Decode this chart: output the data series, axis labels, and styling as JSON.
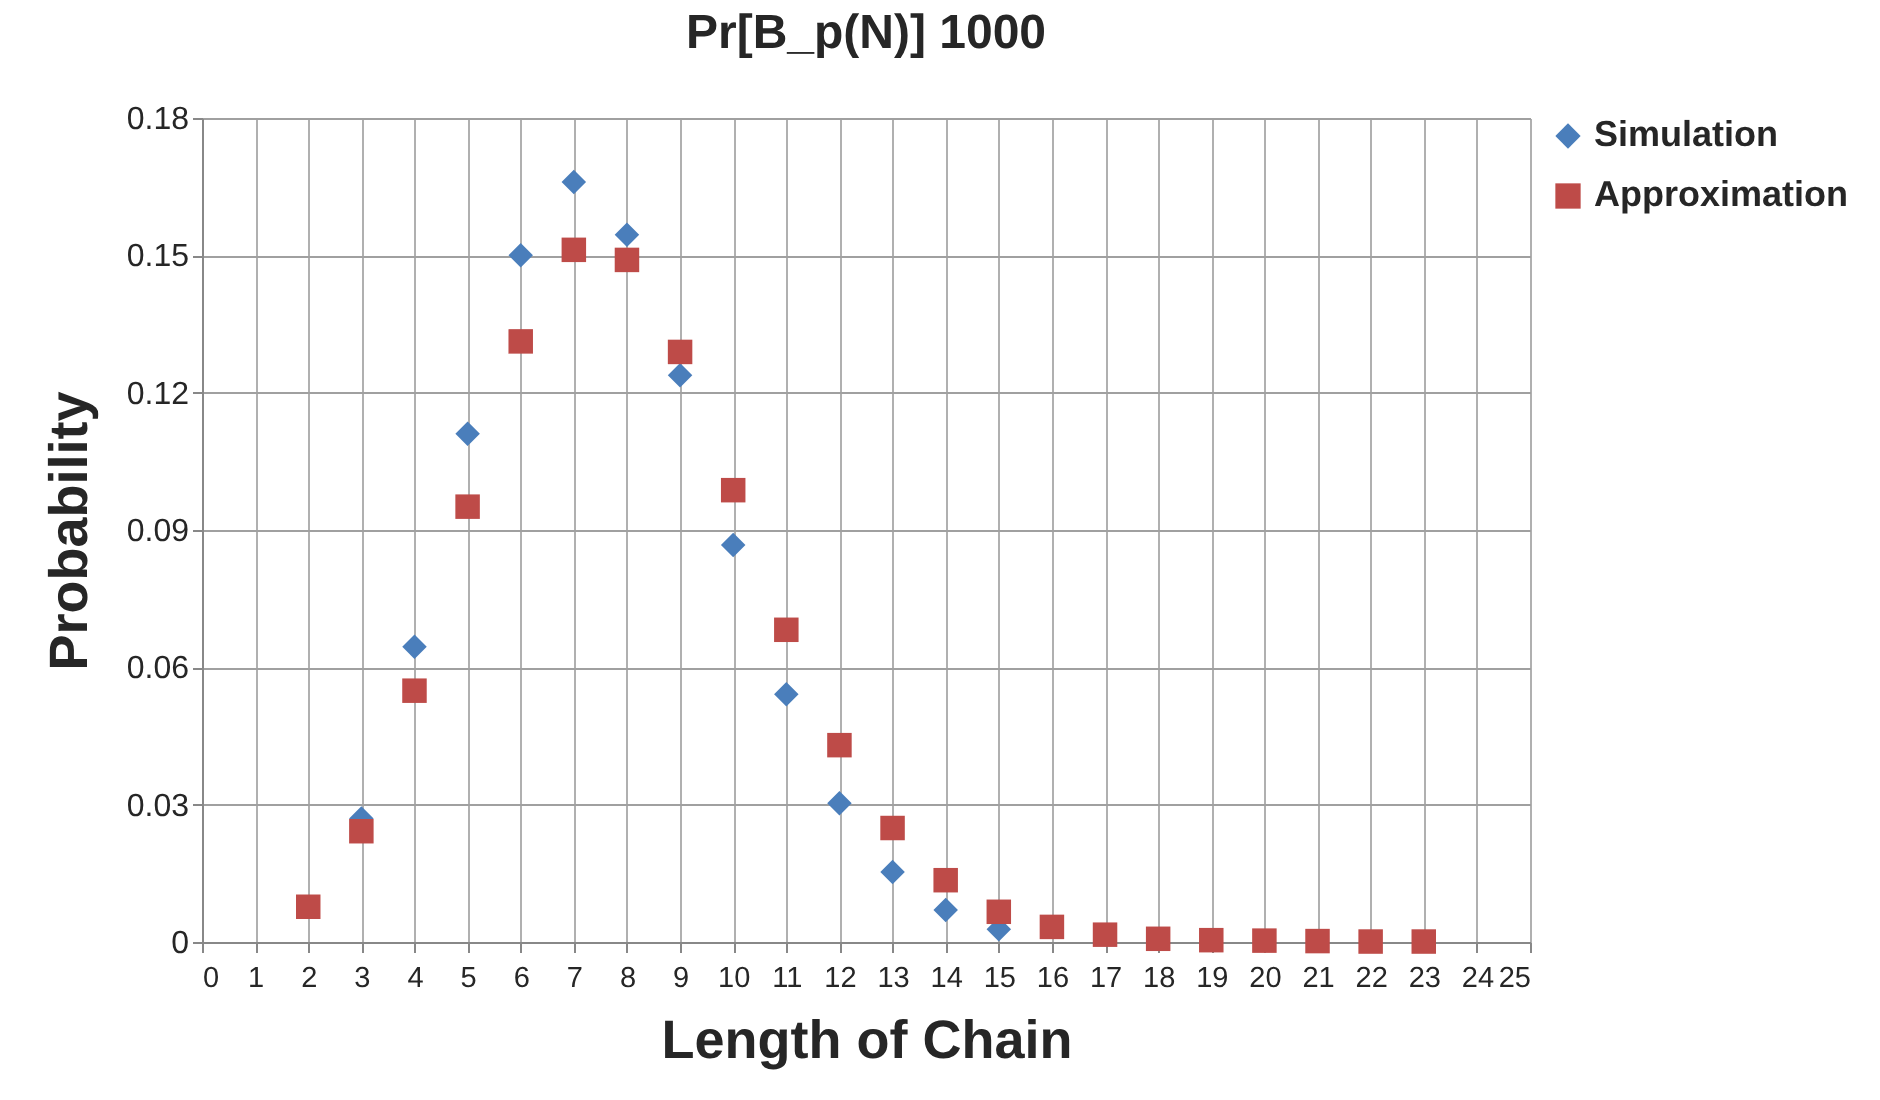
{
  "chart_data": {
    "type": "scatter",
    "title": "Pr[B_p(N)] 1000",
    "xlabel": "Length of Chain",
    "ylabel": "Probability",
    "x": [
      2,
      3,
      4,
      5,
      6,
      7,
      8,
      9,
      10,
      11,
      12,
      13,
      14,
      15,
      16,
      17,
      18,
      19,
      20,
      21,
      22,
      23
    ],
    "series": [
      {
        "name": "Simulation",
        "color": "#4a7ebb",
        "marker": "diamond",
        "values": [
          null,
          0.027,
          0.0645,
          0.111,
          0.15,
          0.166,
          0.1545,
          0.1238,
          0.0867,
          0.0541,
          0.0303,
          0.0153,
          0.007,
          0.0028,
          null,
          null,
          null,
          null,
          null,
          null,
          null,
          null
        ]
      },
      {
        "name": "Approximation",
        "color": "#be4b48",
        "marker": "square",
        "values": [
          0.0077,
          0.0242,
          0.0549,
          0.0951,
          0.1312,
          0.1512,
          0.149,
          0.1289,
          0.0987,
          0.0682,
          0.043,
          0.0249,
          0.0135,
          0.0066,
          0.0033,
          0.0016,
          0.0007,
          0.0004,
          0.0003,
          0.0002,
          0.0001,
          0.0001
        ]
      }
    ],
    "xlim": [
      0,
      25
    ],
    "xticks": [
      0,
      1,
      2,
      3,
      4,
      5,
      6,
      7,
      8,
      9,
      10,
      11,
      12,
      13,
      14,
      15,
      16,
      17,
      18,
      19,
      20,
      21,
      22,
      23,
      24,
      25
    ],
    "ylim": [
      0,
      0.18
    ],
    "yticks": [
      0,
      0.03,
      0.06,
      0.09,
      0.12,
      0.15,
      0.18
    ],
    "grid": true,
    "legend": "right"
  }
}
